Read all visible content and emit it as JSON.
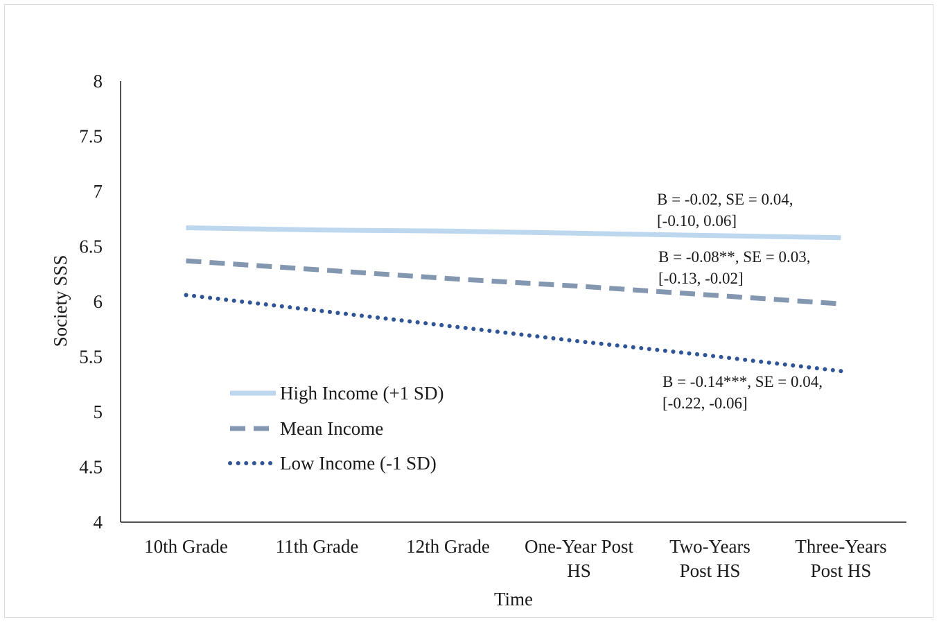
{
  "chart_data": {
    "type": "line",
    "categories": [
      [
        "10th Grade"
      ],
      [
        "11th Grade"
      ],
      [
        "12th Grade"
      ],
      [
        "One-Year Post",
        "HS"
      ],
      [
        "Two-Years",
        "Post HS"
      ],
      [
        "Three-Years",
        "Post HS"
      ]
    ],
    "xlabel": "Time",
    "ylabel": "Society SSS",
    "ylim": [
      4,
      8
    ],
    "yticks": [
      "4",
      "4.5",
      "5",
      "5.5",
      "6",
      "6.5",
      "7",
      "7.5",
      "8"
    ],
    "grid": false,
    "legend_position": "bottom-left",
    "series": [
      {
        "name": "High Income (+1 SD)",
        "values": [
          6.67,
          6.65,
          6.64,
          6.62,
          6.6,
          6.58
        ],
        "color": "#bdd7ee",
        "style": "solid",
        "annotation": [
          "B = -0.02, SE = 0.04,",
          "[-0.10, 0.06]"
        ]
      },
      {
        "name": "Mean Income",
        "values": [
          6.37,
          6.29,
          6.21,
          6.14,
          6.06,
          5.98
        ],
        "color": "#8497b0",
        "style": "dashed",
        "annotation": [
          "B = -0.08**, SE = 0.03,",
          "[-0.13, -0.02]"
        ]
      },
      {
        "name": "Low Income (-1 SD)",
        "values": [
          6.06,
          5.92,
          5.78,
          5.64,
          5.51,
          5.37
        ],
        "color": "#2f5597",
        "style": "dotted",
        "annotation": [
          "B = -0.14***, SE = 0.04,",
          "[-0.22, -0.06]"
        ]
      }
    ]
  }
}
